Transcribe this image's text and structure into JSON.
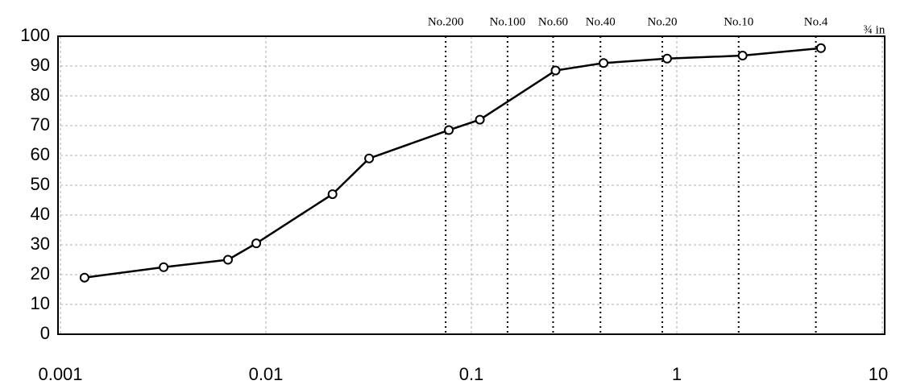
{
  "chart_data": {
    "type": "line",
    "x": [
      0.00131,
      0.00318,
      0.00654,
      0.00898,
      0.0211,
      0.0318,
      0.0777,
      0.11,
      0.257,
      0.44,
      0.897,
      2.09,
      5.03
    ],
    "series": [
      {
        "color": "#000000",
        "values": [
          19,
          22.5,
          25,
          30.5,
          47,
          59,
          68.5,
          72,
          88.5,
          91,
          92.5,
          93.5,
          96
        ]
      }
    ],
    "xscale": "log",
    "xlim": [
      0.001,
      10
    ],
    "xticks": [
      0.001,
      0.01,
      0.1,
      1,
      10
    ],
    "ylim": [
      0,
      100
    ],
    "yticks": [
      0,
      10,
      20,
      30,
      40,
      50,
      60,
      70,
      80,
      90,
      100
    ],
    "grid": true,
    "sieves": [
      {
        "label": "No.200",
        "size": 0.075
      },
      {
        "label": "No.100",
        "size": 0.15
      },
      {
        "label": "No.60",
        "size": 0.25
      },
      {
        "label": "No.40",
        "size": 0.425
      },
      {
        "label": "No.20",
        "size": 0.85
      },
      {
        "label": "No.10",
        "size": 2
      },
      {
        "label": "No.4",
        "size": 4.75
      }
    ],
    "annotation": "¾ in"
  }
}
